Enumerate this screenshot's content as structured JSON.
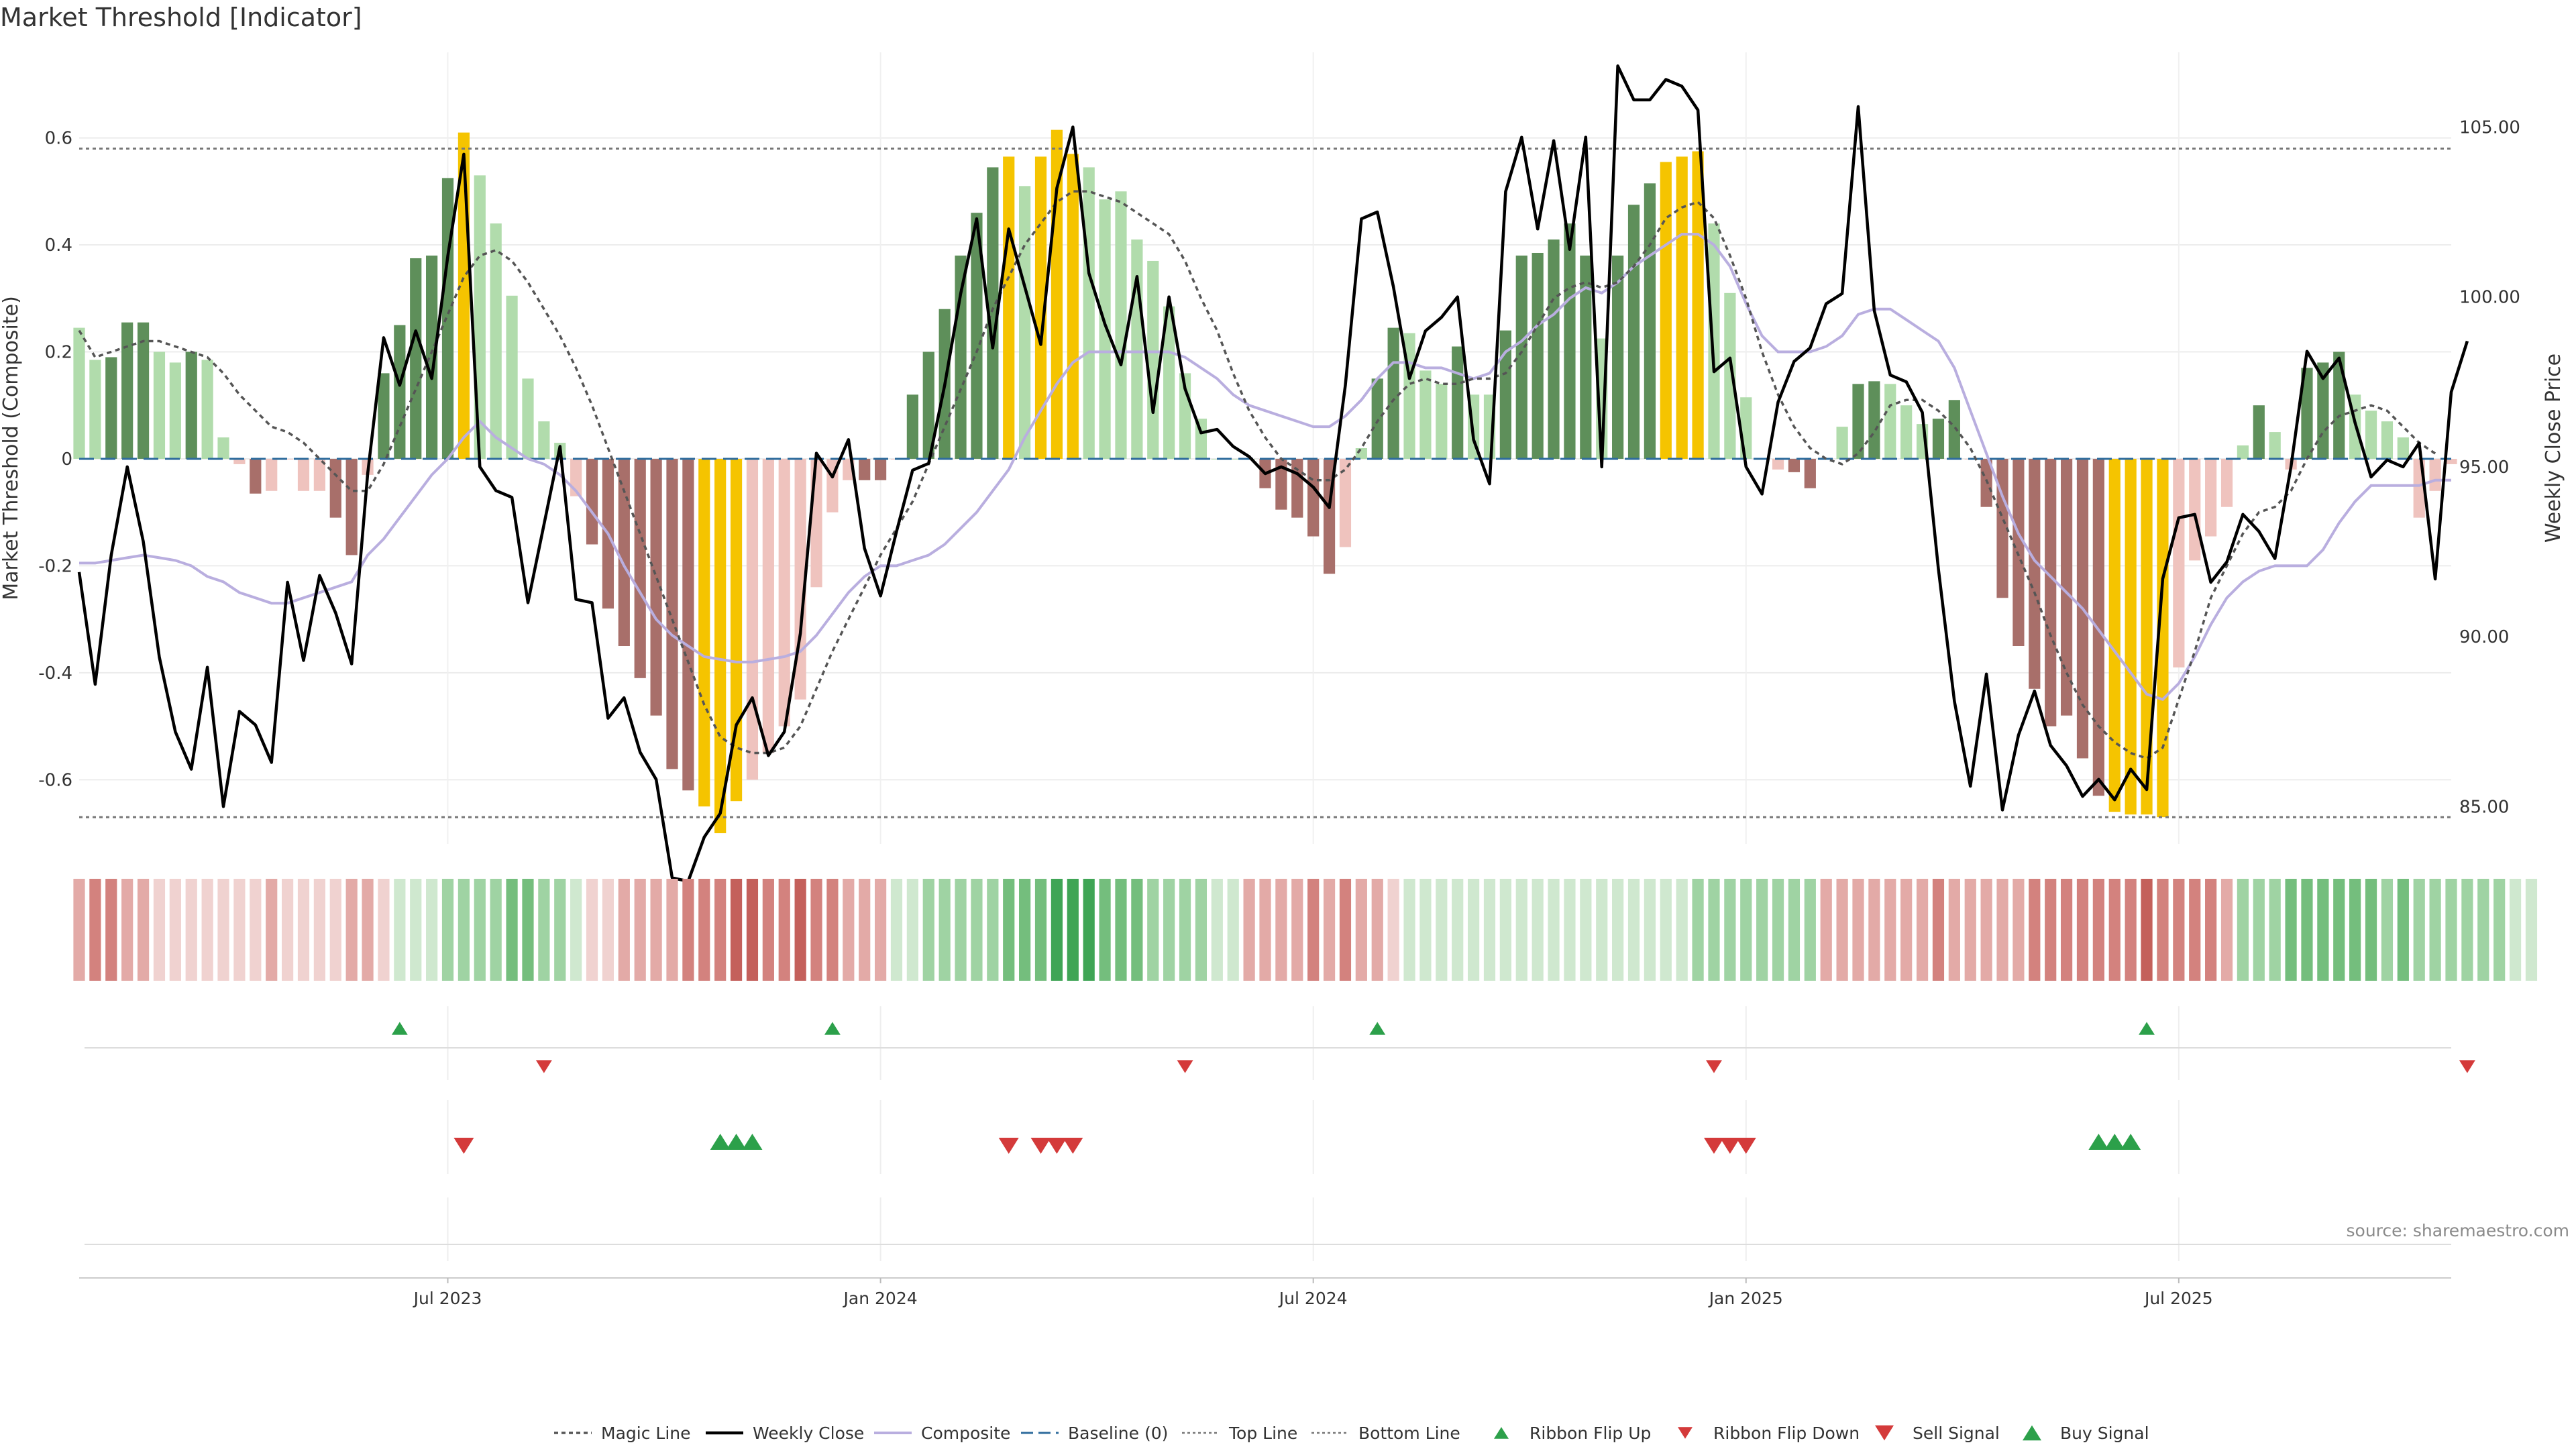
{
  "page": {
    "title": "Market Threshold [Indicator]",
    "source": "source: sharemaestro.com"
  },
  "colors": {
    "bar_strong_bull": "#5e8f5a",
    "bar_weak_bull": "#b1dcac",
    "bar_strong_bear": "#a86f6a",
    "bar_weak_bear": "#efc3be",
    "bar_extreme": "#f5c400",
    "magic_line": "#555555",
    "weekly_close": "#000000",
    "composite": "#b9aedf",
    "baseline": "#2f6c9d",
    "threshold_line": "#777777",
    "buy": "#2ca04a",
    "sell": "#d43a3a"
  },
  "chart_data": {
    "type": "bar",
    "title": "Market Threshold [Indicator]",
    "x_ticks": [
      "Jul 2023",
      "Jan 2024",
      "Jul 2024",
      "Jan 2025",
      "Jul 2025"
    ],
    "x_tick_index": [
      23,
      50,
      77,
      104,
      131
    ],
    "ylabel_left": "Market Threshold (Composite)",
    "ylabel_right": "Weekly Close Price",
    "ylim_left": [
      -0.72,
      0.76
    ],
    "ylim_right": [
      83.9,
      107.2
    ],
    "yticks_left": [
      "0.6",
      "0.4",
      "0.2",
      "0",
      "-0.2",
      "-0.4",
      "-0.6"
    ],
    "yticks_left_values": [
      0.6,
      0.4,
      0.2,
      0,
      -0.2,
      -0.4,
      -0.6
    ],
    "yticks_right": [
      "105.00",
      "100.00",
      "95.00",
      "90.00",
      "85.00"
    ],
    "yticks_right_values": [
      105,
      100,
      95,
      90,
      85
    ],
    "top_line": 0.58,
    "bottom_line": -0.67,
    "baseline": 0,
    "bars": [
      0.245,
      0.185,
      0.19,
      0.255,
      0.255,
      0.2,
      0.18,
      0.2,
      0.185,
      0.04,
      -0.01,
      -0.065,
      -0.06,
      0,
      -0.06,
      -0.06,
      -0.11,
      -0.18,
      -0.03,
      0.16,
      0.25,
      0.375,
      0.38,
      0.525,
      0.61,
      0.53,
      0.44,
      0.305,
      0.15,
      0.07,
      0.03,
      -0.07,
      -0.16,
      -0.28,
      -0.35,
      -0.41,
      -0.48,
      -0.58,
      -0.62,
      -0.65,
      -0.7,
      -0.64,
      -0.6,
      -0.55,
      -0.5,
      -0.45,
      -0.24,
      -0.1,
      -0.04,
      -0.04,
      -0.04,
      0,
      0.12,
      0.2,
      0.28,
      0.38,
      0.46,
      0.545,
      0.565,
      0.51,
      0.565,
      0.615,
      0.57,
      0.545,
      0.485,
      0.5,
      0.41,
      0.37,
      0.285,
      0.16,
      0.075,
      0,
      0,
      0,
      -0.055,
      -0.095,
      -0.11,
      -0.145,
      -0.215,
      -0.165,
      0.02,
      0.15,
      0.245,
      0.235,
      0.165,
      0.14,
      0.21,
      0.12,
      0.12,
      0.24,
      0.38,
      0.385,
      0.41,
      0.44,
      0.38,
      0.225,
      0.38,
      0.475,
      0.515,
      0.555,
      0.565,
      0.575,
      0.44,
      0.31,
      0.115,
      0,
      -0.02,
      -0.025,
      -0.055,
      0,
      0.06,
      0.14,
      0.145,
      0.14,
      0.1,
      0.065,
      0.075,
      0.11,
      0,
      -0.09,
      -0.26,
      -0.35,
      -0.43,
      -0.5,
      -0.48,
      -0.56,
      -0.63,
      -0.66,
      -0.665,
      -0.665,
      -0.67,
      -0.39,
      -0.19,
      -0.145,
      -0.09,
      0.025,
      0.1,
      0.05,
      -0.02,
      0.17,
      0.18,
      0.2,
      0.12,
      0.09,
      0.07,
      0.04,
      -0.11,
      -0.06,
      -0.01
    ],
    "bar_category": [
      "weak_bull",
      "weak_bull",
      "strong_bull",
      "strong_bull",
      "strong_bull",
      "weak_bull",
      "weak_bull",
      "strong_bull",
      "weak_bull",
      "weak_bull",
      "weak_bear",
      "strong_bear",
      "weak_bear",
      "weak_bear",
      "weak_bear",
      "weak_bear",
      "strong_bear",
      "strong_bear",
      "weak_bear",
      "strong_bull",
      "strong_bull",
      "strong_bull",
      "strong_bull",
      "strong_bull",
      "extreme",
      "weak_bull",
      "weak_bull",
      "weak_bull",
      "weak_bull",
      "weak_bull",
      "weak_bull",
      "weak_bear",
      "strong_bear",
      "strong_bear",
      "strong_bear",
      "strong_bear",
      "strong_bear",
      "strong_bear",
      "strong_bear",
      "extreme",
      "extreme",
      "extreme",
      "weak_bear",
      "weak_bear",
      "weak_bear",
      "weak_bear",
      "weak_bear",
      "weak_bear",
      "weak_bear",
      "strong_bear",
      "strong_bear",
      "weak_bear",
      "strong_bull",
      "strong_bull",
      "strong_bull",
      "strong_bull",
      "strong_bull",
      "strong_bull",
      "extreme",
      "weak_bull",
      "extreme",
      "extreme",
      "extreme",
      "weak_bull",
      "weak_bull",
      "weak_bull",
      "weak_bull",
      "weak_bull",
      "weak_bull",
      "weak_bull",
      "weak_bull",
      "weak_bull",
      "weak_bull",
      "weak_bull",
      "strong_bear",
      "strong_bear",
      "strong_bear",
      "strong_bear",
      "strong_bear",
      "weak_bear",
      "weak_bull",
      "strong_bull",
      "strong_bull",
      "weak_bull",
      "weak_bull",
      "weak_bull",
      "strong_bull",
      "weak_bull",
      "weak_bull",
      "strong_bull",
      "strong_bull",
      "strong_bull",
      "strong_bull",
      "strong_bull",
      "strong_bull",
      "weak_bull",
      "strong_bull",
      "strong_bull",
      "strong_bull",
      "extreme",
      "extreme",
      "extreme",
      "weak_bull",
      "weak_bull",
      "weak_bull",
      "weak_bull",
      "weak_bear",
      "strong_bear",
      "strong_bear",
      "weak_bull",
      "weak_bull",
      "strong_bull",
      "strong_bull",
      "weak_bull",
      "weak_bull",
      "weak_bull",
      "strong_bull",
      "strong_bull",
      "weak_bear",
      "strong_bear",
      "strong_bear",
      "strong_bear",
      "strong_bear",
      "strong_bear",
      "strong_bear",
      "strong_bear",
      "strong_bear",
      "extreme",
      "extreme",
      "extreme",
      "extreme",
      "weak_bear",
      "weak_bear",
      "weak_bear",
      "weak_bear",
      "weak_bull",
      "strong_bull",
      "weak_bull",
      "weak_bear",
      "strong_bull",
      "strong_bull",
      "strong_bull",
      "weak_bull",
      "weak_bull",
      "weak_bull",
      "weak_bull",
      "weak_bear",
      "weak_bear",
      "weak_bear"
    ],
    "series": [
      {
        "name": "Magic Line",
        "values": [
          0.24,
          0.19,
          0.2,
          0.21,
          0.22,
          0.22,
          0.21,
          0.2,
          0.19,
          0.16,
          0.12,
          0.09,
          0.06,
          0.05,
          0.03,
          0,
          -0.03,
          -0.06,
          -0.06,
          -0.01,
          0.06,
          0.13,
          0.2,
          0.27,
          0.34,
          0.38,
          0.39,
          0.37,
          0.33,
          0.28,
          0.23,
          0.17,
          0.1,
          0.02,
          -0.06,
          -0.14,
          -0.22,
          -0.3,
          -0.38,
          -0.46,
          -0.52,
          -0.54,
          -0.55,
          -0.55,
          -0.54,
          -0.5,
          -0.43,
          -0.36,
          -0.3,
          -0.24,
          -0.18,
          -0.13,
          -0.08,
          -0.01,
          0.06,
          0.13,
          0.2,
          0.28,
          0.34,
          0.4,
          0.44,
          0.48,
          0.5,
          0.5,
          0.49,
          0.48,
          0.46,
          0.44,
          0.42,
          0.37,
          0.3,
          0.24,
          0.16,
          0.09,
          0.04,
          0,
          -0.02,
          -0.04,
          -0.04,
          -0.02,
          0.02,
          0.07,
          0.11,
          0.14,
          0.15,
          0.14,
          0.14,
          0.15,
          0.15,
          0.16,
          0.2,
          0.25,
          0.3,
          0.32,
          0.33,
          0.32,
          0.33,
          0.36,
          0.4,
          0.45,
          0.47,
          0.48,
          0.45,
          0.38,
          0.3,
          0.2,
          0.12,
          0.06,
          0.02,
          0,
          -0.01,
          0.01,
          0.05,
          0.1,
          0.11,
          0.11,
          0.09,
          0.06,
          0.02,
          -0.04,
          -0.11,
          -0.18,
          -0.25,
          -0.33,
          -0.4,
          -0.46,
          -0.5,
          -0.53,
          -0.55,
          -0.56,
          -0.54,
          -0.45,
          -0.36,
          -0.26,
          -0.2,
          -0.14,
          -0.1,
          -0.09,
          -0.06,
          0,
          0.05,
          0.08,
          0.09,
          0.1,
          0.09,
          0.06,
          0.03,
          0.01
        ]
      },
      {
        "name": "Composite",
        "values": [
          -0.195,
          -0.195,
          -0.19,
          -0.185,
          -0.18,
          -0.185,
          -0.19,
          -0.2,
          -0.22,
          -0.23,
          -0.25,
          -0.26,
          -0.27,
          -0.27,
          -0.26,
          -0.25,
          -0.24,
          -0.23,
          -0.18,
          -0.15,
          -0.11,
          -0.07,
          -0.03,
          0,
          0.04,
          0.07,
          0.04,
          0.02,
          0,
          -0.01,
          -0.03,
          -0.06,
          -0.1,
          -0.14,
          -0.2,
          -0.25,
          -0.3,
          -0.33,
          -0.35,
          -0.37,
          -0.375,
          -0.38,
          -0.38,
          -0.375,
          -0.37,
          -0.36,
          -0.33,
          -0.29,
          -0.25,
          -0.22,
          -0.2,
          -0.2,
          -0.19,
          -0.18,
          -0.16,
          -0.13,
          -0.1,
          -0.06,
          -0.02,
          0.04,
          0.09,
          0.14,
          0.18,
          0.2,
          0.2,
          0.2,
          0.2,
          0.2,
          0.2,
          0.19,
          0.17,
          0.15,
          0.12,
          0.1,
          0.09,
          0.08,
          0.07,
          0.06,
          0.06,
          0.08,
          0.11,
          0.15,
          0.18,
          0.18,
          0.17,
          0.17,
          0.16,
          0.15,
          0.16,
          0.2,
          0.22,
          0.25,
          0.27,
          0.3,
          0.32,
          0.31,
          0.33,
          0.36,
          0.38,
          0.4,
          0.42,
          0.42,
          0.4,
          0.36,
          0.29,
          0.23,
          0.2,
          0.2,
          0.2,
          0.21,
          0.23,
          0.27,
          0.28,
          0.28,
          0.26,
          0.24,
          0.22,
          0.17,
          0.09,
          0.01,
          -0.07,
          -0.14,
          -0.19,
          -0.22,
          -0.25,
          -0.28,
          -0.32,
          -0.36,
          -0.4,
          -0.44,
          -0.45,
          -0.42,
          -0.37,
          -0.31,
          -0.26,
          -0.23,
          -0.21,
          -0.2,
          -0.2,
          -0.2,
          -0.17,
          -0.12,
          -0.08,
          -0.05,
          -0.05,
          -0.05,
          -0.05,
          -0.04,
          -0.04
        ]
      },
      {
        "name": "Weekly Close",
        "values": [
          91.9,
          88.6,
          92.4,
          95.0,
          92.8,
          89.4,
          87.2,
          86.1,
          89.1,
          85.0,
          87.8,
          87.4,
          86.3,
          91.6,
          89.3,
          91.8,
          90.7,
          89.2,
          94.8,
          98.8,
          97.4,
          99.0,
          97.6,
          101.2,
          104.2,
          95.0,
          94.3,
          94.1,
          91.0,
          93.3,
          95.6,
          91.1,
          91.0,
          87.6,
          88.2,
          86.6,
          85.8,
          82.9,
          82.8,
          84.1,
          84.8,
          87.4,
          88.2,
          86.5,
          87.2,
          90.1,
          95.4,
          94.7,
          95.8,
          92.6,
          91.2,
          93.1,
          94.9,
          95.1,
          97.4,
          100.1,
          102.3,
          98.5,
          102.0,
          100.3,
          98.6,
          103.2,
          105.0,
          100.7,
          99.2,
          98.0,
          100.6,
          96.6,
          100.0,
          97.3,
          96.0,
          96.1,
          95.6,
          95.3,
          94.8,
          95.0,
          94.8,
          94.4,
          93.8,
          97.4,
          102.3,
          102.5,
          100.3,
          97.6,
          99.0,
          99.4,
          100.0,
          95.8,
          94.5,
          103.1,
          104.7,
          102.0,
          104.6,
          101.4,
          104.7,
          95.0,
          106.8,
          105.8,
          105.8,
          106.4,
          106.2,
          105.5,
          97.8,
          98.2,
          95.0,
          94.2,
          96.9,
          98.1,
          98.5,
          99.8,
          100.1,
          105.6,
          99.6,
          97.7,
          97.5,
          96.6,
          92.0,
          88.1,
          85.6,
          88.9,
          84.9,
          87.1,
          88.4,
          86.8,
          86.2,
          85.3,
          85.8,
          85.2,
          86.1,
          85.5,
          91.7,
          93.5,
          93.6,
          91.6,
          92.2,
          93.6,
          93.1,
          92.3,
          95.0,
          98.4,
          97.6,
          98.2,
          96.3,
          94.7,
          95.2,
          95.0,
          95.7,
          91.7,
          97.2,
          98.7
        ]
      }
    ],
    "ribbon_level": [
      -2,
      -3,
      -3,
      -2,
      -2,
      -1,
      -1,
      -1,
      -1,
      -1,
      -1,
      -1,
      -2,
      -1,
      -1,
      -1,
      -1,
      -2,
      -2,
      -1,
      1,
      1,
      1,
      2,
      2,
      2,
      2,
      3,
      3,
      2,
      2,
      1,
      -1,
      -1,
      -2,
      -2,
      -2,
      -2,
      -3,
      -3,
      -3,
      -4,
      -4,
      -3,
      -3,
      -4,
      -3,
      -3,
      -2,
      -2,
      -2,
      1,
      1,
      2,
      2,
      2,
      2,
      2,
      3,
      3,
      3,
      4,
      4,
      4,
      3,
      3,
      3,
      2,
      2,
      2,
      2,
      1,
      1,
      -2,
      -2,
      -2,
      -2,
      -3,
      -2,
      -3,
      -2,
      -2,
      -1,
      1,
      1,
      1,
      1,
      1,
      1,
      1,
      1,
      1,
      1,
      1,
      1,
      1,
      1,
      1,
      1,
      1,
      1,
      2,
      2,
      2,
      2,
      2,
      2,
      2,
      2,
      -2,
      -2,
      -2,
      -2,
      -2,
      -2,
      -2,
      -3,
      -2,
      -2,
      -2,
      -2,
      -2,
      -3,
      -3,
      -3,
      -3,
      -3,
      -3,
      -3,
      -4,
      -3,
      -3,
      -3,
      -3,
      -2,
      2,
      2,
      2,
      3,
      3,
      3,
      3,
      3,
      3,
      2,
      3,
      2,
      2,
      2,
      2,
      2,
      2,
      1,
      1
    ],
    "ribbon_flip_up": [
      20,
      47,
      81,
      129
    ],
    "ribbon_flip_down": [
      29,
      69,
      102,
      149
    ],
    "sell_signal": [
      24,
      58,
      60,
      61,
      62,
      102,
      103,
      104
    ],
    "buy_signal": [
      40,
      41,
      42,
      126,
      127,
      128
    ],
    "legend": [
      "Magic Line",
      "Weekly Close",
      "Composite",
      "Baseline (0)",
      "Top Line",
      "Bottom Line",
      "Ribbon Flip Up",
      "Ribbon Flip Down",
      "Sell Signal",
      "Buy Signal"
    ],
    "legend_placement": "bottom-center",
    "grid": true
  }
}
